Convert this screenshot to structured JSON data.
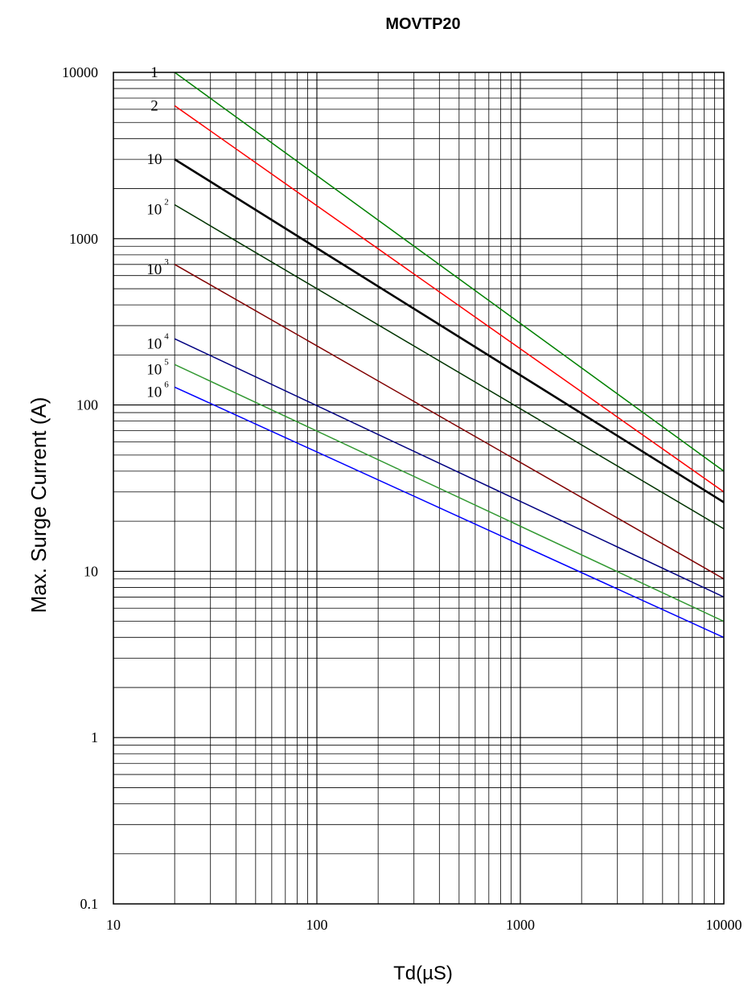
{
  "chart_data": {
    "type": "line",
    "title": "MOVTP20",
    "xlabel": "Td(µS)",
    "ylabel": "Max.  Surge Current (A)",
    "xscale": "log",
    "yscale": "log",
    "xlim": [
      10,
      10000
    ],
    "ylim": [
      0.1,
      10000
    ],
    "grid": true,
    "x_ticks": [
      10,
      100,
      1000,
      10000
    ],
    "x_tick_labels": [
      "10",
      "100",
      "1000",
      "10000"
    ],
    "y_ticks": [
      0.1,
      1,
      10,
      100,
      1000,
      10000
    ],
    "y_tick_labels": [
      "0.1",
      "1",
      "10",
      "100",
      "1000",
      "10000"
    ],
    "series": [
      {
        "name": "1",
        "base": "1",
        "exp": "",
        "color": "#008000",
        "x": [
          20,
          10000
        ],
        "y": [
          10000,
          40
        ]
      },
      {
        "name": "2",
        "base": "2",
        "exp": "",
        "color": "#ff0000",
        "x": [
          20,
          10000
        ],
        "y": [
          6300,
          30
        ]
      },
      {
        "name": "10",
        "base": "10",
        "exp": "",
        "color": "#000000",
        "x": [
          20,
          10000
        ],
        "y": [
          3000,
          26
        ]
      },
      {
        "name": "10^2",
        "base": "10",
        "exp": "2",
        "color": "#003300",
        "x": [
          20,
          10000
        ],
        "y": [
          1600,
          18
        ]
      },
      {
        "name": "10^3",
        "base": "10",
        "exp": "3",
        "color": "#800000",
        "x": [
          20,
          10000
        ],
        "y": [
          700,
          9
        ]
      },
      {
        "name": "10^4",
        "base": "10",
        "exp": "4",
        "color": "#000080",
        "x": [
          20,
          10000
        ],
        "y": [
          250,
          7
        ]
      },
      {
        "name": "10^5",
        "base": "10",
        "exp": "5",
        "color": "#339933",
        "x": [
          20,
          10000
        ],
        "y": [
          175,
          5
        ]
      },
      {
        "name": "10^6",
        "base": "10",
        "exp": "6",
        "color": "#0000ff",
        "x": [
          20,
          10000
        ],
        "y": [
          128,
          4
        ]
      }
    ]
  }
}
